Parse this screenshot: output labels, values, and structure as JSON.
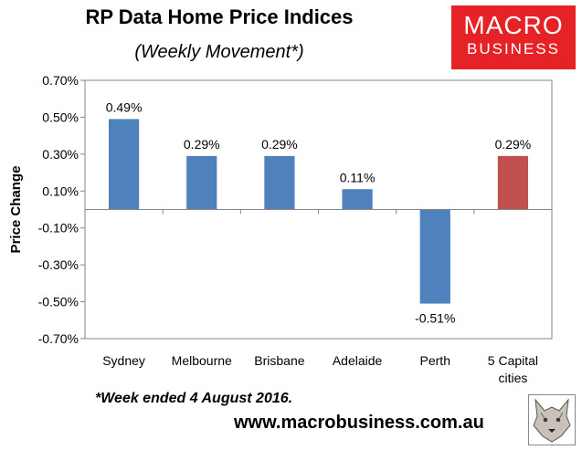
{
  "branding": {
    "logo_line1": "MACRO",
    "logo_line2": "BUSINESS",
    "url": "www.macrobusiness.com.au",
    "logo_color": "#e52226"
  },
  "footnote": "*Week ended 4 August 2016.",
  "chart_data": {
    "type": "bar",
    "title": "RP Data Home Price Indices",
    "subtitle": "(Weekly Movement*)",
    "xlabel": "",
    "ylabel": "Price Change",
    "ylim": [
      -0.7,
      0.7
    ],
    "yticks": [
      -0.7,
      -0.5,
      -0.3,
      -0.1,
      0.1,
      0.3,
      0.5,
      0.7
    ],
    "ytick_labels": [
      "-0.70%",
      "-0.50%",
      "-0.30%",
      "-0.10%",
      "0.10%",
      "0.30%",
      "0.50%",
      "0.70%"
    ],
    "categories": [
      [
        "Sydney"
      ],
      [
        "Melbourne"
      ],
      [
        "Brisbane"
      ],
      [
        "Adelaide"
      ],
      [
        "Perth"
      ],
      [
        "5 Capital",
        "cities"
      ]
    ],
    "values": [
      0.49,
      0.29,
      0.29,
      0.11,
      -0.51,
      0.29
    ],
    "data_labels": [
      "0.49%",
      "0.29%",
      "0.29%",
      "0.11%",
      "-0.51%",
      "0.29%"
    ],
    "colors": [
      "#4f81bd",
      "#4f81bd",
      "#4f81bd",
      "#4f81bd",
      "#4f81bd",
      "#c0504d"
    ],
    "plot_background": "#ffffff",
    "grid": false,
    "legend": "none"
  }
}
